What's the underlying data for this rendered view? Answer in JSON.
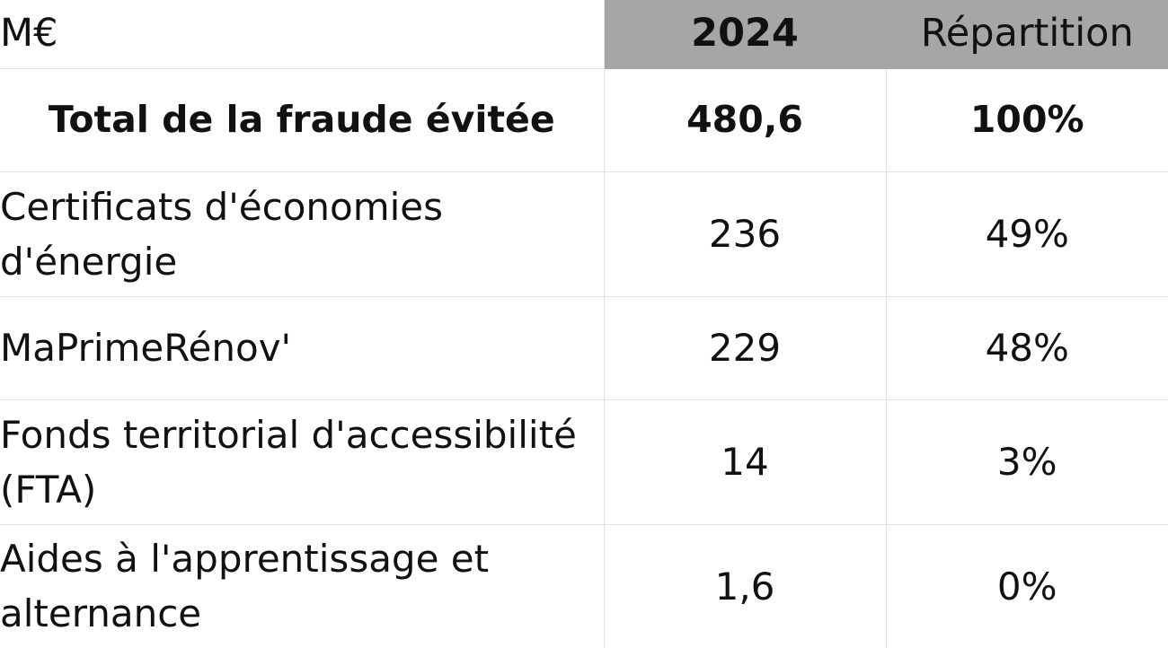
{
  "table": {
    "header": {
      "unit": "M€",
      "year": "2024",
      "share": "Répartition"
    },
    "total": {
      "label": "Total de la fraude évitée",
      "value": "480,6",
      "share": "100%"
    },
    "rows": [
      {
        "label": "Certificats d'économies d'énergie",
        "value": "236",
        "share": "49%"
      },
      {
        "label": "MaPrimeRénov'",
        "value": "229",
        "share": "48%"
      },
      {
        "label": "Fonds territorial d'accessibilité (FTA)",
        "value": "14",
        "share": "3%"
      },
      {
        "label": "Aides à l'apprentissage et alternance",
        "value": "1,6",
        "share": "0%"
      }
    ]
  },
  "colors": {
    "header_shade": "#a6a6a6",
    "grid_line": "#e2e2e2",
    "text": "#111111"
  }
}
